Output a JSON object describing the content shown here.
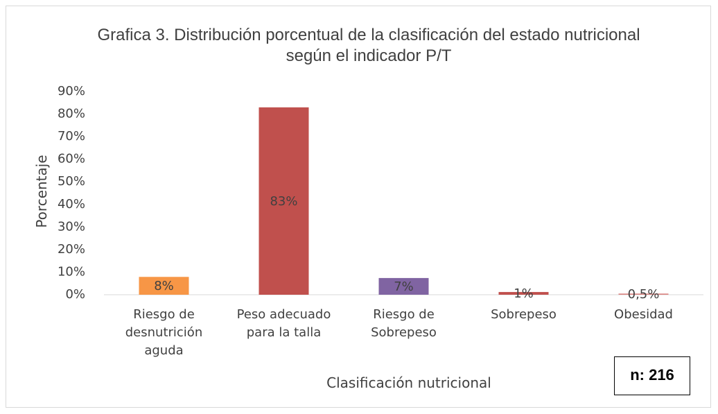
{
  "chart_data": {
    "type": "bar",
    "title": "Grafica 3. Distribución porcentual de la clasificación del estado nutricional según el indicador P/T",
    "x_label": "Clasificación nutricional",
    "y_label": "Porcentaje",
    "annotation": "n: 216",
    "categories": [
      "Riesgo de desnutrición aguda",
      "Peso adecuado para la talla",
      "Riesgo de Sobrepeso",
      "Sobrepeso",
      "Obesidad"
    ],
    "values": [
      7.9,
      83,
      7.4,
      1.2,
      0.5
    ],
    "value_labels": [
      "8%",
      "83%",
      "7%",
      "1%",
      "0,5%"
    ],
    "colors": [
      "#f79646",
      "#c0504d",
      "#8064a2",
      "#c0504d",
      "#d9827f"
    ],
    "ylim": [
      0,
      90
    ],
    "yticks": [
      {
        "value": 0,
        "label": "0%"
      },
      {
        "value": 10,
        "label": "10%"
      },
      {
        "value": 20,
        "label": "20%"
      },
      {
        "value": 30,
        "label": "30%"
      },
      {
        "value": 40,
        "label": "40%"
      },
      {
        "value": 50,
        "label": "50%"
      },
      {
        "value": 60,
        "label": "60%"
      },
      {
        "value": 70,
        "label": "70%"
      },
      {
        "value": 80,
        "label": "80%"
      },
      {
        "value": 90,
        "label": "90%"
      }
    ],
    "grid": false
  }
}
